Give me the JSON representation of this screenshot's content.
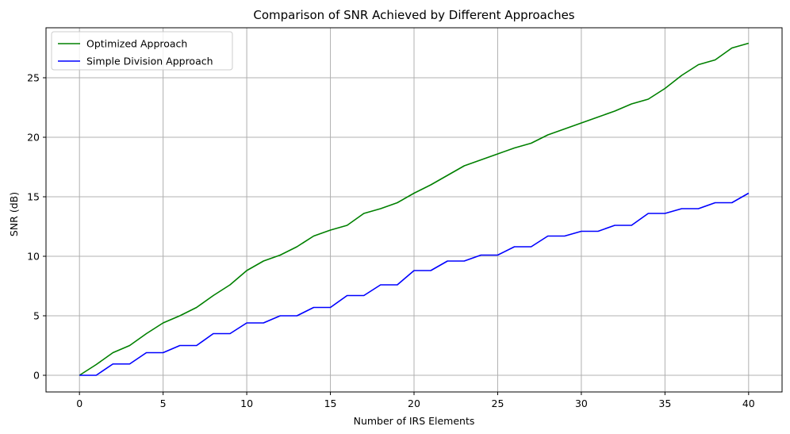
{
  "chart_data": {
    "type": "line",
    "title": "Comparison of SNR Achieved by Different Approaches",
    "xlabel": "Number of IRS Elements",
    "ylabel": "SNR (dB)",
    "xlim": [
      -2,
      42
    ],
    "ylim": [
      -1.4,
      29.2
    ],
    "xticks": [
      0,
      5,
      10,
      15,
      20,
      25,
      30,
      35,
      40
    ],
    "yticks": [
      0,
      5,
      10,
      15,
      20,
      25
    ],
    "grid": true,
    "legend_position": "top-left",
    "x": [
      0,
      1,
      2,
      3,
      4,
      5,
      6,
      7,
      8,
      9,
      10,
      11,
      12,
      13,
      14,
      15,
      16,
      17,
      18,
      19,
      20,
      21,
      22,
      23,
      24,
      25,
      26,
      27,
      28,
      29,
      30,
      31,
      32,
      33,
      34,
      35,
      36,
      37,
      38,
      39,
      40
    ],
    "series": [
      {
        "name": "Optimized Approach",
        "color": "#008000",
        "values": [
          0,
          0.9,
          1.9,
          2.5,
          3.5,
          4.4,
          5.0,
          5.7,
          6.7,
          7.6,
          8.8,
          9.6,
          10.1,
          10.8,
          11.7,
          12.2,
          12.6,
          13.6,
          14.0,
          14.5,
          15.3,
          16.0,
          16.8,
          17.6,
          18.1,
          18.6,
          19.1,
          19.5,
          20.2,
          20.7,
          21.2,
          21.7,
          22.2,
          22.8,
          23.2,
          24.1,
          25.2,
          26.1,
          26.5,
          27.5,
          27.9
        ]
      },
      {
        "name": "Simple Division Approach",
        "color": "#0000ff",
        "values": [
          0,
          0,
          0.95,
          0.95,
          1.9,
          1.9,
          2.5,
          2.5,
          3.5,
          3.5,
          4.4,
          4.4,
          5.0,
          5.0,
          5.7,
          5.7,
          6.7,
          6.7,
          7.6,
          7.6,
          8.8,
          8.8,
          9.6,
          9.6,
          10.1,
          10.1,
          10.8,
          10.8,
          11.7,
          11.7,
          12.1,
          12.1,
          12.6,
          12.6,
          13.6,
          13.6,
          14.0,
          14.0,
          14.5,
          14.5,
          15.3
        ]
      }
    ]
  }
}
